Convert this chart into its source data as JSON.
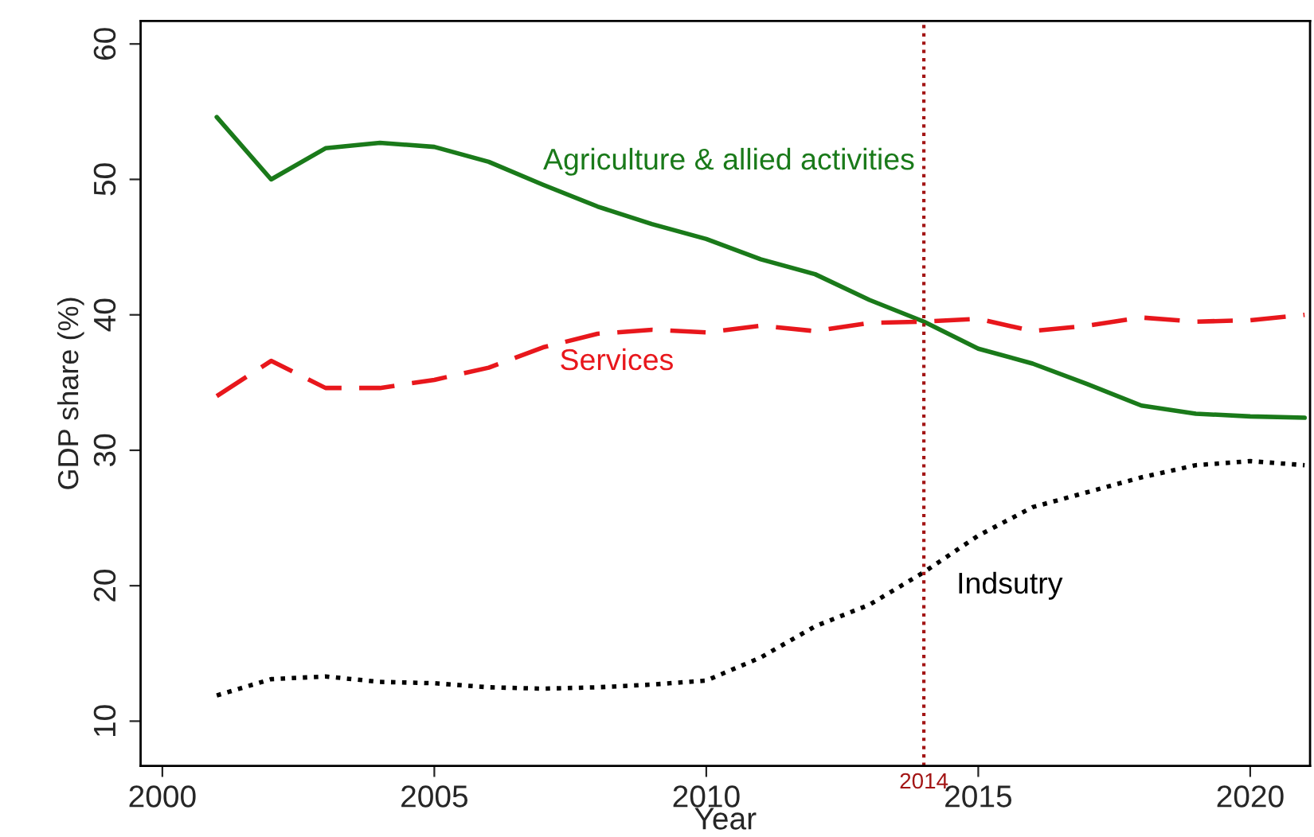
{
  "chart_data": {
    "type": "line",
    "xlabel": "Year",
    "ylabel": "GDP share (%)",
    "x": [
      2001,
      2002,
      2003,
      2004,
      2005,
      2006,
      2007,
      2008,
      2009,
      2010,
      2011,
      2012,
      2013,
      2014,
      2015,
      2016,
      2017,
      2018,
      2019,
      2020,
      2021
    ],
    "series": [
      {
        "name": "Agriculture & allied activities",
        "color": "#1a7a1a",
        "line_style": "solid",
        "values": [
          54.6,
          50.0,
          52.3,
          52.7,
          52.4,
          51.3,
          49.6,
          48.0,
          46.7,
          45.6,
          44.1,
          43.0,
          41.1,
          39.5,
          37.5,
          36.4,
          34.9,
          33.3,
          32.7,
          32.5,
          32.4
        ]
      },
      {
        "name": "Services",
        "color": "#e8171c",
        "line_style": "dashed",
        "values": [
          34.0,
          36.6,
          34.6,
          34.6,
          35.2,
          36.1,
          37.6,
          38.6,
          38.9,
          38.7,
          39.2,
          38.8,
          39.4,
          39.5,
          39.7,
          38.8,
          39.2,
          39.8,
          39.5,
          39.6,
          40.0
        ]
      },
      {
        "name": "Indsutry",
        "color": "#000000",
        "line_style": "dotted",
        "values": [
          11.9,
          13.1,
          13.3,
          12.9,
          12.8,
          12.5,
          12.4,
          12.5,
          12.7,
          13.0,
          14.7,
          17.0,
          18.6,
          21.0,
          23.7,
          25.8,
          26.9,
          28.0,
          28.9,
          29.2,
          28.9
        ]
      }
    ],
    "ref_lines": [
      {
        "axis": "x",
        "value": 2014,
        "label": "2014",
        "color": "#a31515",
        "line_style": "dotted"
      }
    ],
    "xlim": [
      1999.6,
      2021.1
    ],
    "ylim": [
      6.7,
      61.7
    ],
    "xticks": [
      2000,
      2005,
      2010,
      2015,
      2020
    ],
    "yticks": [
      10,
      20,
      30,
      40,
      50,
      60
    ],
    "grid": false,
    "legend": false,
    "marker": "none"
  }
}
